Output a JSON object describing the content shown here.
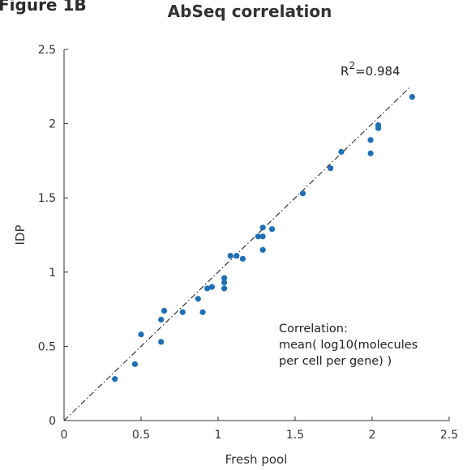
{
  "figure_label": "Figure 1B",
  "chart_data": {
    "type": "scatter",
    "title": "AbSeq correlation",
    "xlabel": "Fresh pool",
    "ylabel": "IDP",
    "xlim": [
      0,
      2.5
    ],
    "ylim": [
      0,
      2.5
    ],
    "xticks": [
      "0",
      "0.5",
      "1",
      "1.5",
      "2",
      "2.5"
    ],
    "yticks": [
      "0",
      "0.5",
      "1",
      "1.5",
      "2",
      "2.5"
    ],
    "grid": false,
    "point_color": "#1f6fb4",
    "fit_line": {
      "x": [
        0,
        2.25
      ],
      "y": [
        0,
        2.25
      ],
      "style": "dash-dot"
    },
    "r2_label": {
      "base": "R",
      "sup": "2",
      "value": "=0.984"
    },
    "annotation": [
      "Correlation:",
      "mean( log10(molecules",
      "per cell per gene) )"
    ],
    "points": [
      {
        "x": 0.33,
        "y": 0.28
      },
      {
        "x": 0.46,
        "y": 0.38
      },
      {
        "x": 0.5,
        "y": 0.58
      },
      {
        "x": 0.63,
        "y": 0.53
      },
      {
        "x": 0.63,
        "y": 0.68
      },
      {
        "x": 0.65,
        "y": 0.74
      },
      {
        "x": 0.77,
        "y": 0.73
      },
      {
        "x": 0.87,
        "y": 0.82
      },
      {
        "x": 0.9,
        "y": 0.73
      },
      {
        "x": 0.93,
        "y": 0.89
      },
      {
        "x": 0.96,
        "y": 0.9
      },
      {
        "x": 1.04,
        "y": 0.89
      },
      {
        "x": 1.04,
        "y": 0.93
      },
      {
        "x": 1.04,
        "y": 0.96
      },
      {
        "x": 1.08,
        "y": 1.11
      },
      {
        "x": 1.12,
        "y": 1.11
      },
      {
        "x": 1.16,
        "y": 1.09
      },
      {
        "x": 1.26,
        "y": 1.24
      },
      {
        "x": 1.29,
        "y": 1.24
      },
      {
        "x": 1.29,
        "y": 1.3
      },
      {
        "x": 1.29,
        "y": 1.15
      },
      {
        "x": 1.35,
        "y": 1.29
      },
      {
        "x": 1.55,
        "y": 1.53
      },
      {
        "x": 1.73,
        "y": 1.7
      },
      {
        "x": 1.8,
        "y": 1.81
      },
      {
        "x": 1.99,
        "y": 1.8
      },
      {
        "x": 1.99,
        "y": 1.89
      },
      {
        "x": 2.04,
        "y": 1.97
      },
      {
        "x": 2.04,
        "y": 1.99
      },
      {
        "x": 2.26,
        "y": 2.18
      }
    ]
  }
}
